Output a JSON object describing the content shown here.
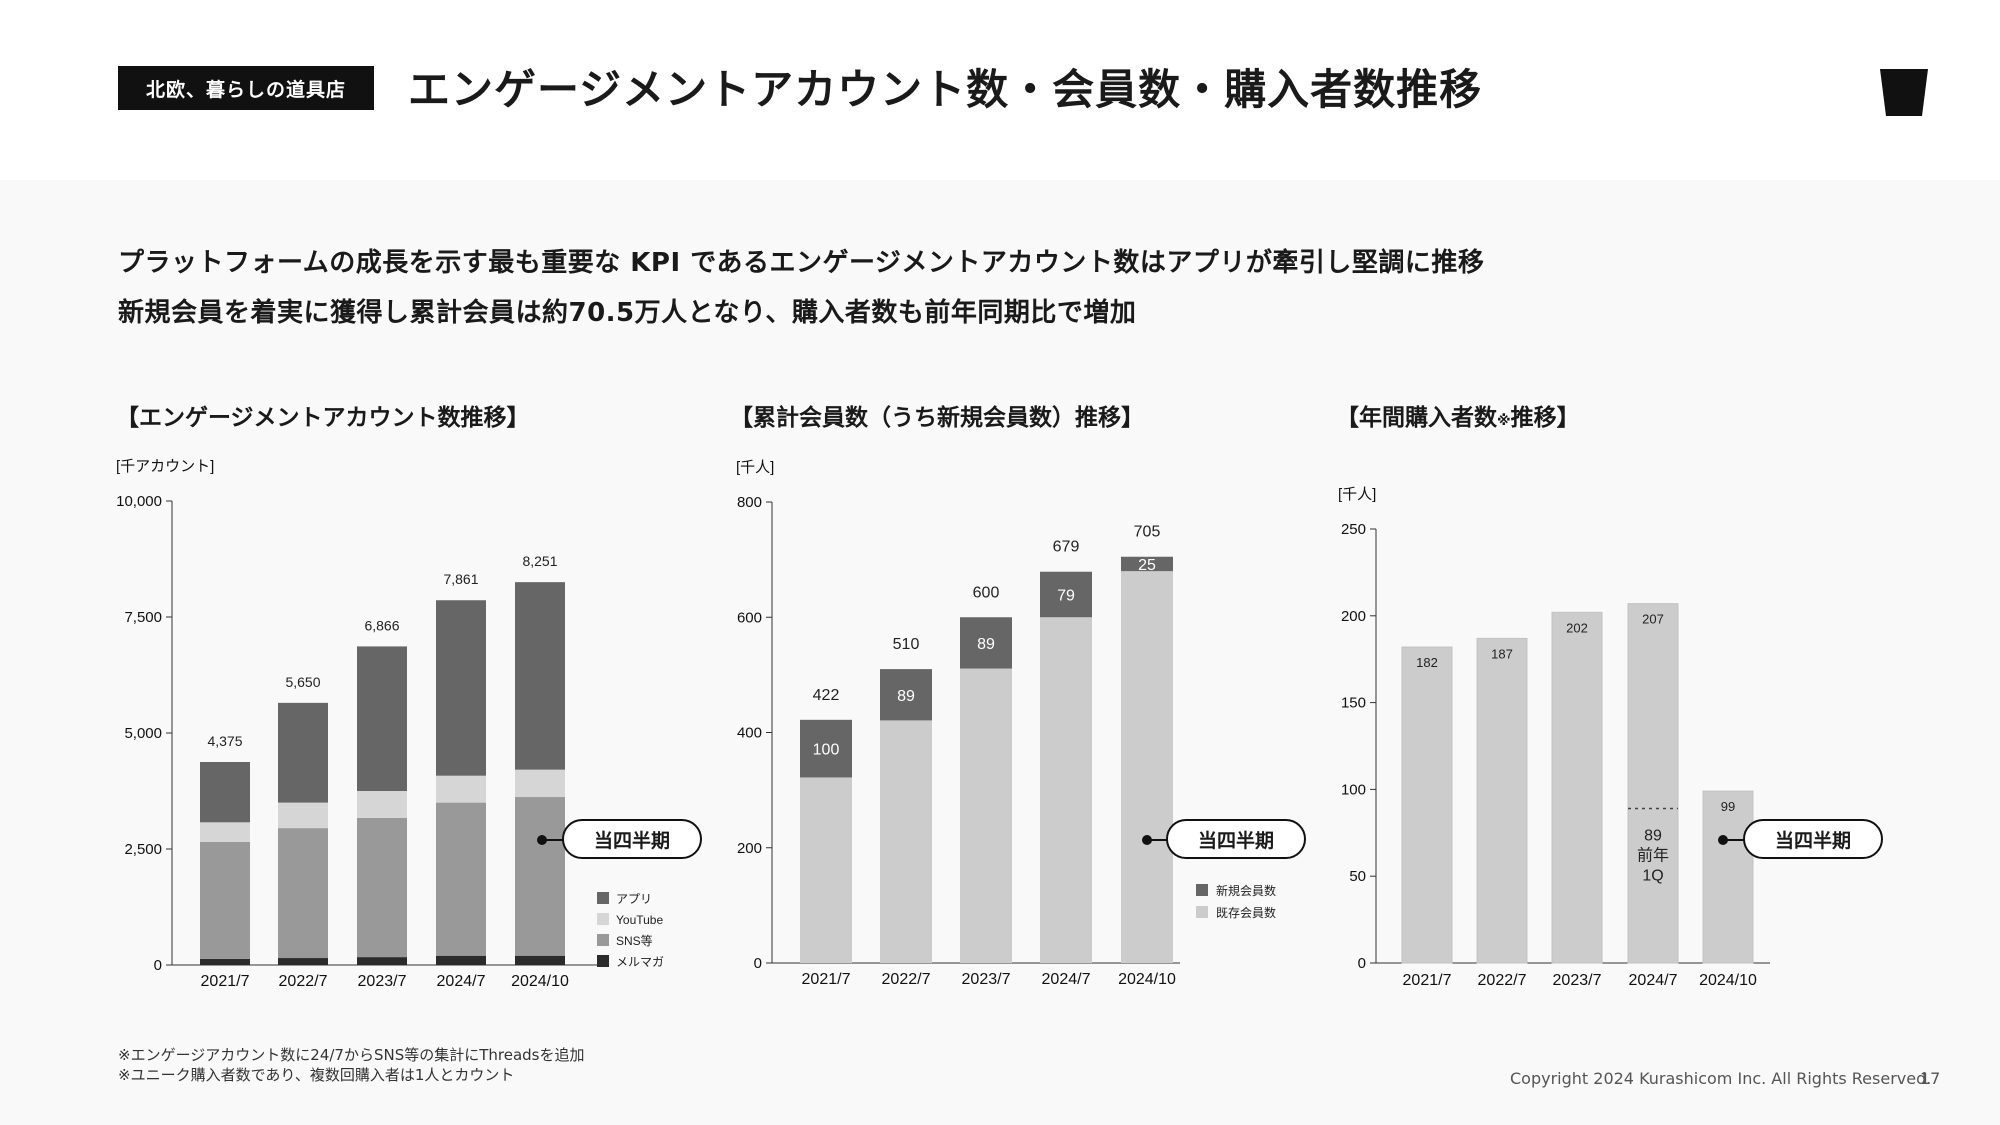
{
  "header": {
    "brand": "北欧、暮らしの道具店",
    "title": "エンゲージメントアカウント数・会員数・購入者数推移"
  },
  "lead": {
    "line1": "プラットフォームの成長を示す最も重要な KPI であるエンゲージメントアカウント数はアプリが牽引し堅調に推移",
    "line2": "新規会員を着実に獲得し累計会員は約70.5万人となり、購入者数も前年同期比で増加"
  },
  "callout_label": "当四半期",
  "footnotes": [
    "※エンゲージアカウント数に24/7からSNS等の集計にThreadsを追加",
    "※ユニーク購入者数であり、複数回購入者は1人とカウント"
  ],
  "footer": {
    "copyright": "Copyright 2024 Kurashicom Inc. All Rights Reserved.",
    "page": "17"
  },
  "colors": {
    "dark": "#666666",
    "light": "#d6d6d6",
    "mid": "#999999",
    "black": "#2b2b2b",
    "bar": "#cccccc"
  },
  "chart_data": [
    {
      "type": "bar",
      "stacked": true,
      "title": "【エンゲージメントアカウント数推移】",
      "unit": "[千アカウント]",
      "categories": [
        "2021/7",
        "2022/7",
        "2023/7",
        "2024/7",
        "2024/10"
      ],
      "series": [
        {
          "name": "メルマガ",
          "values": [
            130,
            150,
            170,
            200,
            200
          ]
        },
        {
          "name": "SNS等",
          "values": [
            2525,
            2800,
            3000,
            3300,
            3420
          ]
        },
        {
          "name": "YouTube",
          "values": [
            420,
            550,
            580,
            580,
            590
          ]
        },
        {
          "name": "アプリ",
          "values": [
            1300,
            2150,
            3116,
            3781,
            4041
          ]
        }
      ],
      "legend_order": [
        "アプリ",
        "YouTube",
        "SNS等",
        "メルマガ"
      ],
      "totals": [
        "4,375",
        "5,650",
        "6,866",
        "7,861",
        "8,251"
      ],
      "yticks": [
        "0",
        "2,500",
        "5,000",
        "7,500",
        "10,000"
      ],
      "ylim": [
        0,
        10000
      ]
    },
    {
      "type": "bar",
      "stacked": true,
      "title": "【累計会員数（うち新規会員数）推移】",
      "unit": "[千人]",
      "categories": [
        "2021/7",
        "2022/7",
        "2023/7",
        "2024/7",
        "2024/10"
      ],
      "series": [
        {
          "name": "既存会員数",
          "values": [
            322,
            421,
            511,
            600,
            680
          ]
        },
        {
          "name": "新規会員数",
          "values": [
            100,
            89,
            89,
            79,
            25
          ]
        }
      ],
      "legend_order": [
        "新規会員数",
        "既存会員数"
      ],
      "totals": [
        "422",
        "510",
        "600",
        "679",
        "705"
      ],
      "new_labels": [
        "100",
        "89",
        "89",
        "79",
        "25"
      ],
      "yticks": [
        "0",
        "200",
        "400",
        "600",
        "800"
      ],
      "ylim": [
        0,
        800
      ]
    },
    {
      "type": "bar",
      "title_prefix": "【年間購入者数",
      "title_mark": "※",
      "title_suffix": "推移】",
      "unit": "[千人]",
      "categories": [
        "2021/7",
        "2022/7",
        "2023/7",
        "2024/7",
        "2024/10"
      ],
      "values": [
        182,
        187,
        202,
        207,
        99
      ],
      "labels": [
        "182",
        "187",
        "202",
        "207",
        "99"
      ],
      "prior_year": {
        "value": 89,
        "label_value": "89",
        "label_line1": "前年",
        "label_line2": "1Q"
      },
      "yticks": [
        "0",
        "50",
        "100",
        "150",
        "200",
        "250"
      ],
      "ylim": [
        0,
        250
      ]
    }
  ]
}
